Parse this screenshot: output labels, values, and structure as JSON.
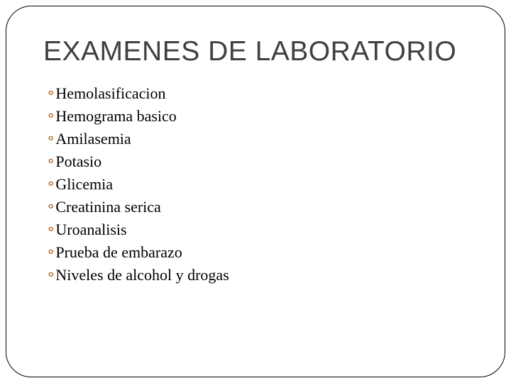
{
  "slide": {
    "title": "EXAMENES DE LABORATORIO",
    "title_color": "#404040",
    "title_fontsize": 39,
    "bullet_glyph": "॰",
    "bullet_color": "#b8763f",
    "item_fontsize": 22,
    "item_color": "#000000",
    "frame_border_color": "#000000",
    "frame_border_radius": 36,
    "background_color": "#ffffff",
    "items": [
      "Hemolasificacion",
      "Hemograma basico",
      "Amilasemia",
      "Potasio",
      "Glicemia",
      "Creatinina serica",
      "Uroanalisis",
      "Prueba de embarazo",
      "Niveles de alcohol y drogas"
    ]
  }
}
